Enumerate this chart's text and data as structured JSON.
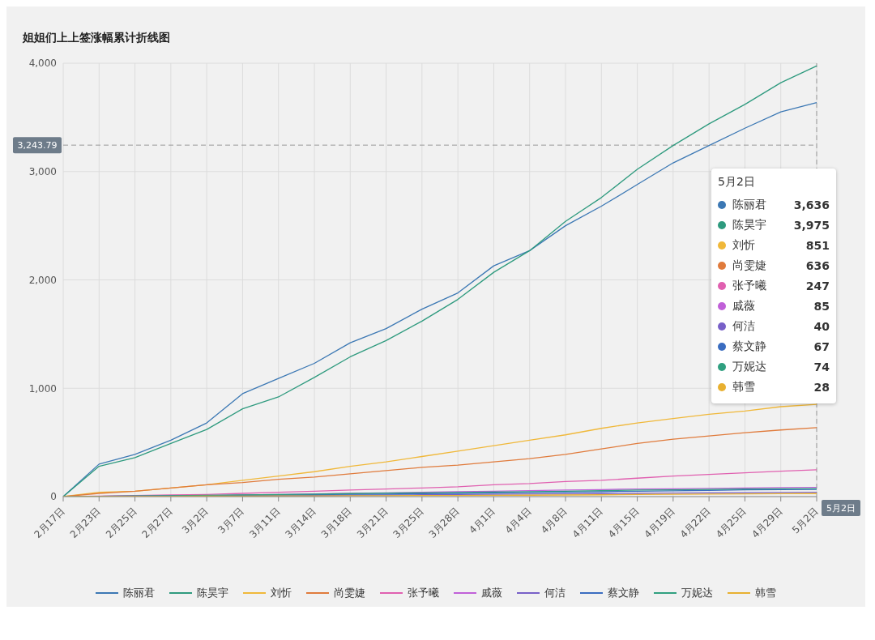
{
  "chart_data": {
    "type": "line",
    "title": "姐姐们上上签涨幅累计折线图",
    "categories": [
      "2月17日",
      "2月23日",
      "2月25日",
      "2月27日",
      "3月2日",
      "3月7日",
      "3月11日",
      "3月14日",
      "3月18日",
      "3月21日",
      "3月25日",
      "3月28日",
      "4月1日",
      "4月4日",
      "4月8日",
      "4月11日",
      "4月15日",
      "4月19日",
      "4月22日",
      "4月25日",
      "4月29日",
      "5月2日"
    ],
    "series": [
      {
        "name": "陈丽君",
        "color": "#3c78b4",
        "values": [
          0,
          300,
          390,
          520,
          680,
          950,
          1090,
          1230,
          1420,
          1550,
          1730,
          1880,
          2130,
          2270,
          2500,
          2680,
          2880,
          3080,
          3240,
          3400,
          3550,
          3636
        ]
      },
      {
        "name": "陈昊宇",
        "color": "#2e9a7e",
        "values": [
          0,
          280,
          360,
          490,
          620,
          810,
          920,
          1100,
          1290,
          1440,
          1620,
          1820,
          2070,
          2270,
          2540,
          2760,
          3020,
          3240,
          3440,
          3620,
          3820,
          3975
        ]
      },
      {
        "name": "刘忻",
        "color": "#f0b83a",
        "values": [
          0,
          40,
          50,
          80,
          110,
          150,
          190,
          230,
          280,
          320,
          370,
          420,
          470,
          520,
          570,
          630,
          680,
          720,
          760,
          790,
          830,
          851
        ]
      },
      {
        "name": "尚雯婕",
        "color": "#e07b3c",
        "values": [
          0,
          30,
          50,
          80,
          110,
          130,
          160,
          180,
          210,
          240,
          270,
          290,
          320,
          350,
          390,
          440,
          490,
          530,
          560,
          590,
          615,
          636
        ]
      },
      {
        "name": "张予曦",
        "color": "#e060b0",
        "values": [
          0,
          5,
          10,
          15,
          20,
          30,
          40,
          50,
          60,
          70,
          80,
          90,
          110,
          120,
          140,
          150,
          170,
          190,
          205,
          220,
          235,
          247
        ]
      },
      {
        "name": "戚薇",
        "color": "#c060d8",
        "values": [
          0,
          2,
          5,
          8,
          10,
          15,
          20,
          25,
          30,
          35,
          40,
          45,
          50,
          55,
          60,
          65,
          70,
          72,
          76,
          80,
          83,
          85
        ]
      },
      {
        "name": "何洁",
        "color": "#7860c8",
        "values": [
          0,
          1,
          2,
          4,
          5,
          7,
          9,
          11,
          13,
          15,
          17,
          19,
          21,
          23,
          25,
          28,
          30,
          32,
          34,
          36,
          38,
          40
        ]
      },
      {
        "name": "蔡文静",
        "color": "#3a6cc0",
        "values": [
          0,
          2,
          4,
          6,
          8,
          12,
          15,
          18,
          21,
          24,
          27,
          30,
          33,
          37,
          40,
          45,
          50,
          54,
          58,
          62,
          65,
          67
        ]
      },
      {
        "name": "万妮达",
        "color": "#30a080",
        "values": [
          0,
          3,
          6,
          9,
          12,
          16,
          20,
          24,
          28,
          32,
          35,
          38,
          42,
          46,
          50,
          55,
          60,
          63,
          66,
          70,
          72,
          74
        ]
      },
      {
        "name": "韩雪",
        "color": "#e8b030",
        "values": [
          0,
          1,
          2,
          3,
          4,
          5,
          6,
          7,
          8,
          9,
          10,
          11,
          12,
          13,
          15,
          17,
          19,
          21,
          23,
          25,
          27,
          28
        ]
      }
    ],
    "ylim": [
      0,
      4000
    ],
    "yticks": [
      0,
      {
        "value": 1000,
        "label": "1,000"
      },
      {
        "value": 2000,
        "label": "2,000"
      },
      {
        "value": 3000,
        "label": "3,000"
      },
      {
        "value": 4000,
        "label": "4,000"
      }
    ],
    "grid": true,
    "legend": "bottom",
    "marker": "none",
    "line_style": "solid",
    "ref_lines": [
      {
        "axis": "y",
        "value": 3243.79,
        "label": "3,243.79",
        "color": "#999999",
        "line_style": "dashed"
      },
      {
        "axis": "x",
        "value": "5月2日",
        "label": "5月2日",
        "color": "#999999",
        "line_style": "dashed"
      }
    ],
    "annotations": [
      "3,636",
      "3,975",
      "851",
      "636",
      "247",
      "85",
      "40",
      "67",
      "74",
      "28"
    ]
  }
}
